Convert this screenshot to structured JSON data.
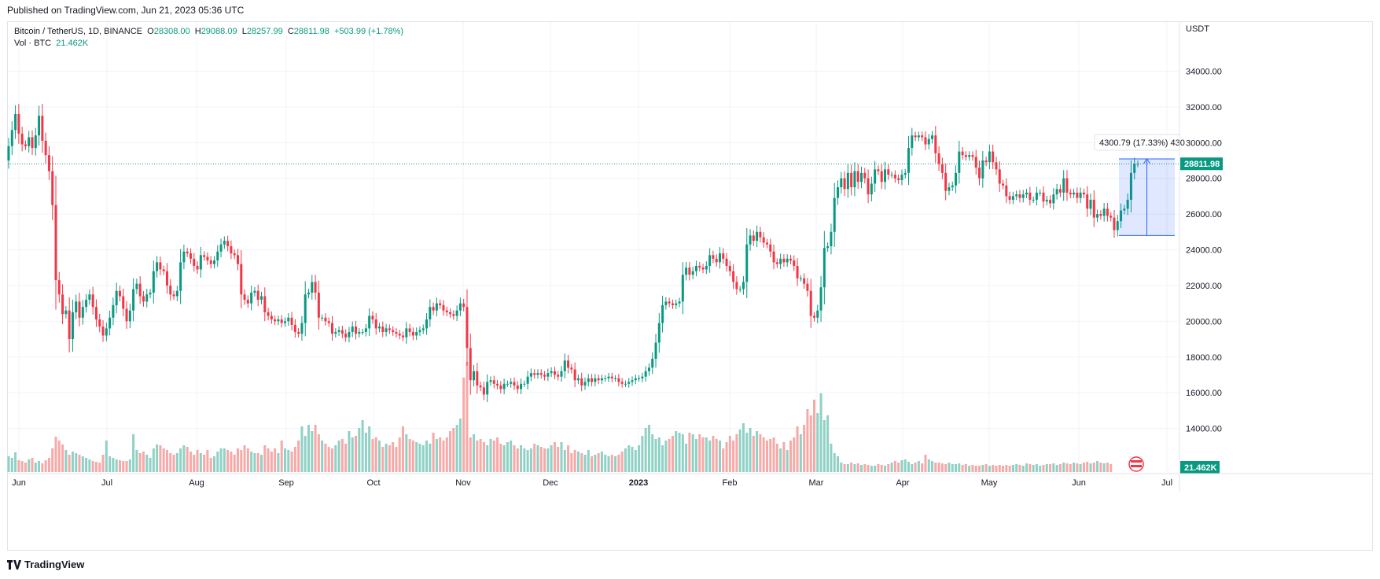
{
  "header": {
    "published": "Published on TradingView.com, Jun 21, 2023 05:36 UTC"
  },
  "legend": {
    "symbol": "Bitcoin / TetherUS, 1D, BINANCE",
    "o_label": "O",
    "o_value": "28308.00",
    "h_label": "H",
    "h_value": "29088.09",
    "l_label": "L",
    "l_value": "28257.99",
    "c_label": "C",
    "c_value": "28811.98",
    "change": "+503.99 (+1.78%)",
    "vol_label": "Vol · BTC",
    "vol_value": "21.462K"
  },
  "footer": {
    "brand": "TradingView"
  },
  "colors": {
    "up": "#089981",
    "down": "#f23645",
    "up_vol": "#8fd1c5",
    "down_vol": "#f7a9a7",
    "measure": "#2962ff"
  },
  "chart_data": {
    "type": "candlestick",
    "title": "Bitcoin / TetherUS, 1D, BINANCE",
    "currency": "USDT",
    "y_axis": {
      "ticks": [
        "14000.00",
        "16000.00",
        "18000.00",
        "20000.00",
        "22000.00",
        "24000.00",
        "26000.00",
        "28000.00",
        "30000.00",
        "32000.00",
        "34000.00"
      ],
      "range": [
        12000,
        36000
      ]
    },
    "x_axis": {
      "ticks": [
        "Jun",
        "Jul",
        "Aug",
        "Sep",
        "Oct",
        "Nov",
        "Dec",
        "2023",
        "Feb",
        "Mar",
        "Apr",
        "May",
        "Jun",
        "Jul"
      ]
    },
    "last_price": "28811.98",
    "last_volume": "21.462K",
    "measure": {
      "label": "4300.79 (17.33%) 430",
      "from": 24800,
      "to": 29088
    },
    "closes": [
      29800,
      30700,
      31600,
      30500,
      29900,
      29800,
      30300,
      29700,
      30400,
      31500,
      30100,
      29300,
      28400,
      26500,
      22300,
      21500,
      20400,
      20600,
      19000,
      20500,
      21100,
      20200,
      20800,
      21200,
      21500,
      20800,
      20100,
      19700,
      19200,
      19600,
      20200,
      20900,
      21700,
      21400,
      20700,
      20000,
      20600,
      21800,
      22100,
      21400,
      21100,
      21500,
      21600,
      22800,
      23300,
      22900,
      22800,
      22000,
      21500,
      21400,
      21700,
      23300,
      23900,
      23800,
      23500,
      23100,
      22900,
      23700,
      23600,
      23400,
      23200,
      23400,
      23900,
      24300,
      24500,
      24200,
      23800,
      23700,
      23200,
      21500,
      21200,
      21000,
      21600,
      21700,
      21200,
      21400,
      20500,
      20300,
      20100,
      20000,
      20100,
      19900,
      20000,
      20200,
      19800,
      19400,
      19300,
      19900,
      21500,
      21600,
      22200,
      21600,
      20200,
      20200,
      20000,
      19900,
      19300,
      19400,
      19500,
      19300,
      19100,
      19400,
      19700,
      19300,
      19400,
      19400,
      19600,
      20300,
      20100,
      19600,
      19700,
      19400,
      19600,
      19500,
      19400,
      19300,
      19200,
      19100,
      19600,
      19400,
      19200,
      19400,
      19500,
      19600,
      20100,
      20800,
      20600,
      21000,
      20900,
      20600,
      20500,
      20400,
      20300,
      20600,
      21000,
      20800,
      18500,
      16700,
      17200,
      16400,
      16300,
      15900,
      16600,
      16700,
      16500,
      16400,
      16200,
      16500,
      16500,
      16600,
      16400,
      16200,
      16500,
      16500,
      16900,
      17100,
      17000,
      17100,
      17000,
      16900,
      17100,
      17200,
      17000,
      16900,
      17200,
      17800,
      17400,
      17300,
      16700,
      16800,
      16400,
      16600,
      16800,
      16600,
      16800,
      16700,
      16800,
      16800,
      16900,
      16800,
      16800,
      16600,
      16500,
      16500,
      16600,
      16700,
      16800,
      16800,
      16900,
      17200,
      17400,
      17900,
      18800,
      19900,
      20900,
      21100,
      21000,
      20900,
      21000,
      21100,
      22600,
      23000,
      22600,
      22800,
      23100,
      23000,
      22900,
      23100,
      23700,
      23500,
      23300,
      23800,
      23500,
      23100,
      22800,
      22200,
      21800,
      21800,
      22200,
      24300,
      24800,
      24500,
      25000,
      24700,
      24400,
      24300,
      23900,
      23300,
      23200,
      23500,
      23300,
      23500,
      23400,
      23100,
      22400,
      22400,
      22100,
      21700,
      20300,
      20200,
      20600,
      21900,
      24100,
      24200,
      25000,
      26900,
      27500,
      28000,
      27400,
      28300,
      27500,
      28400,
      27800,
      28300,
      28000,
      27100,
      27700,
      28500,
      28400,
      27800,
      28500,
      28200,
      28200,
      28000,
      27900,
      28200,
      28300,
      29700,
      30400,
      30300,
      30400,
      30300,
      29900,
      30200,
      30400,
      29400,
      28800,
      28300,
      27300,
      27500,
      27600,
      28300,
      29500,
      29300,
      29200,
      29300,
      29200,
      28600,
      28000,
      29000,
      28900,
      29500,
      28900,
      28500,
      27700,
      27600,
      27000,
      26800,
      27000,
      27100,
      26900,
      27100,
      27200,
      26800,
      26800,
      27200,
      27200,
      26700,
      26800,
      26600,
      27100,
      27400,
      27200,
      28000,
      27200,
      27100,
      27200,
      26900,
      27200,
      27100,
      26300,
      26800,
      25800,
      26000,
      25900,
      26300,
      25900,
      25800,
      25100,
      25600,
      26200,
      26300,
      26800,
      28300,
      28800,
      28812
    ],
    "volumes": [
      20,
      18,
      25,
      15,
      14,
      12,
      16,
      18,
      12,
      14,
      11,
      15,
      18,
      30,
      45,
      40,
      35,
      28,
      22,
      26,
      24,
      22,
      20,
      18,
      16,
      14,
      13,
      12,
      22,
      40,
      20,
      18,
      16,
      15,
      14,
      14,
      16,
      48,
      28,
      24,
      26,
      22,
      18,
      30,
      35,
      34,
      30,
      28,
      24,
      22,
      24,
      30,
      34,
      32,
      26,
      22,
      28,
      24,
      22,
      28,
      18,
      20,
      26,
      30,
      30,
      28,
      26,
      22,
      30,
      28,
      34,
      30,
      26,
      24,
      24,
      22,
      34,
      30,
      26,
      30,
      24,
      40,
      30,
      28,
      26,
      32,
      40,
      58,
      46,
      60,
      52,
      60,
      48,
      40,
      36,
      32,
      30,
      34,
      40,
      42,
      36,
      52,
      44,
      46,
      56,
      66,
      50,
      58,
      42,
      44,
      40,
      32,
      36,
      34,
      38,
      32,
      44,
      58,
      48,
      42,
      40,
      38,
      36,
      34,
      40,
      36,
      50,
      42,
      44,
      40,
      44,
      52,
      56,
      60,
      68,
      120,
      140,
      44,
      48,
      40,
      42,
      38,
      34,
      42,
      40,
      44,
      36,
      34,
      38,
      40,
      34,
      30,
      34,
      30,
      28,
      30,
      36,
      34,
      32,
      30,
      30,
      34,
      38,
      32,
      38,
      28,
      34,
      24,
      28,
      26,
      24,
      22,
      28,
      20,
      22,
      24,
      26,
      22,
      20,
      22,
      20,
      22,
      26,
      30,
      34,
      32,
      28,
      34,
      46,
      56,
      60,
      48,
      42,
      44,
      34,
      40,
      42,
      46,
      52,
      50,
      48,
      36,
      50,
      48,
      42,
      48,
      44,
      44,
      40,
      46,
      42,
      40,
      30,
      38,
      46,
      40,
      48,
      54,
      62,
      50,
      56,
      46,
      52,
      48,
      44,
      40,
      42,
      44,
      36,
      30,
      38,
      28,
      40,
      44,
      58,
      48,
      60,
      80,
      72,
      92,
      75,
      100,
      66,
      72,
      36,
      24,
      20,
      12,
      10,
      10,
      12,
      10,
      11,
      9,
      10,
      9,
      8,
      8,
      10,
      9,
      8,
      10,
      12,
      14,
      12,
      15,
      16,
      13,
      10,
      12,
      14,
      11,
      22,
      16,
      14,
      12,
      12,
      11,
      10,
      12,
      10,
      10,
      11,
      9,
      10,
      8,
      9,
      8,
      8,
      9,
      10,
      8,
      9,
      8,
      9,
      8,
      9,
      8,
      9,
      10,
      9,
      8,
      11,
      10,
      9,
      10,
      8,
      9,
      10,
      10,
      11,
      9,
      10,
      12,
      11,
      10,
      12,
      11,
      10,
      12,
      13,
      11,
      12,
      14,
      12,
      11,
      12,
      10
    ]
  }
}
